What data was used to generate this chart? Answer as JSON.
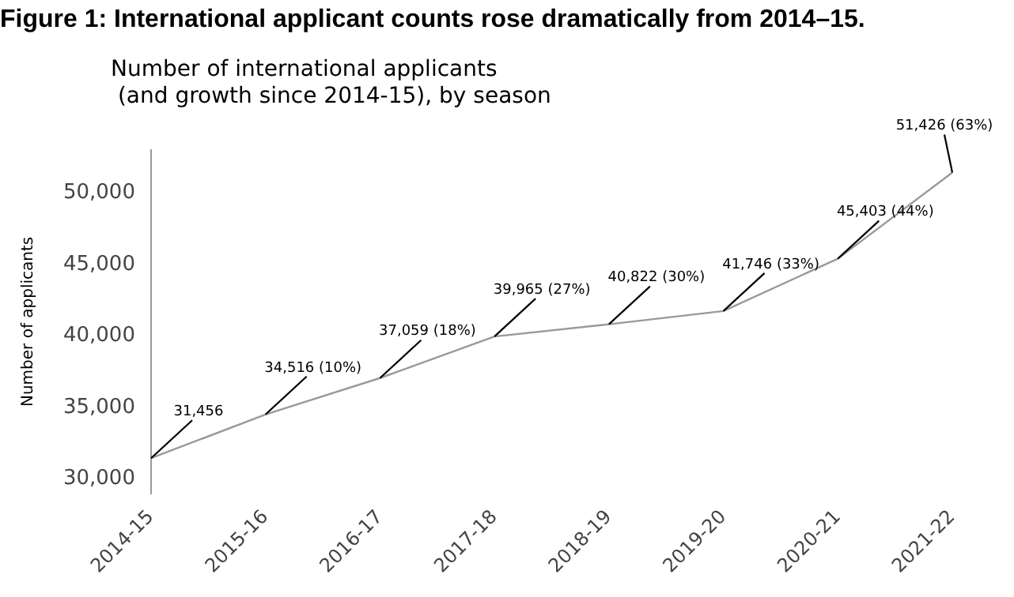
{
  "chart_data": {
    "type": "line",
    "title": "Figure 1: International applicant counts rose dramatically from 2014–15.",
    "subtitle": "Number of international applicants\n (and growth since 2014-15), by season",
    "ylabel": "Number of applicants",
    "categories": [
      "2014-15",
      "2015-16",
      "2016-17",
      "2017-18",
      "2018-19",
      "2019-20",
      "2020-21",
      "2021-22"
    ],
    "series": [
      {
        "color": "#999999",
        "values": [
          31456,
          34516,
          37059,
          39965,
          40822,
          41746,
          45403,
          51426
        ],
        "value_labels": [
          "31,456",
          "34,516 (10%)",
          "37,059 (18%)",
          "39,965 (27%)",
          "40,822 (30%)",
          "41,746 (33%)",
          "45,403 (44%)",
          "51,426 (63%)"
        ]
      }
    ],
    "ylim": [
      29000,
      53000
    ],
    "yticks": [
      {
        "value": 30000,
        "label": "30,000"
      },
      {
        "value": 35000,
        "label": "35,000"
      },
      {
        "value": 40000,
        "label": "40,000"
      },
      {
        "value": 45000,
        "label": "45,000"
      },
      {
        "value": 50000,
        "label": "50,000"
      }
    ],
    "grid": false,
    "legend": false,
    "marker": "none",
    "line_style": "solid"
  }
}
